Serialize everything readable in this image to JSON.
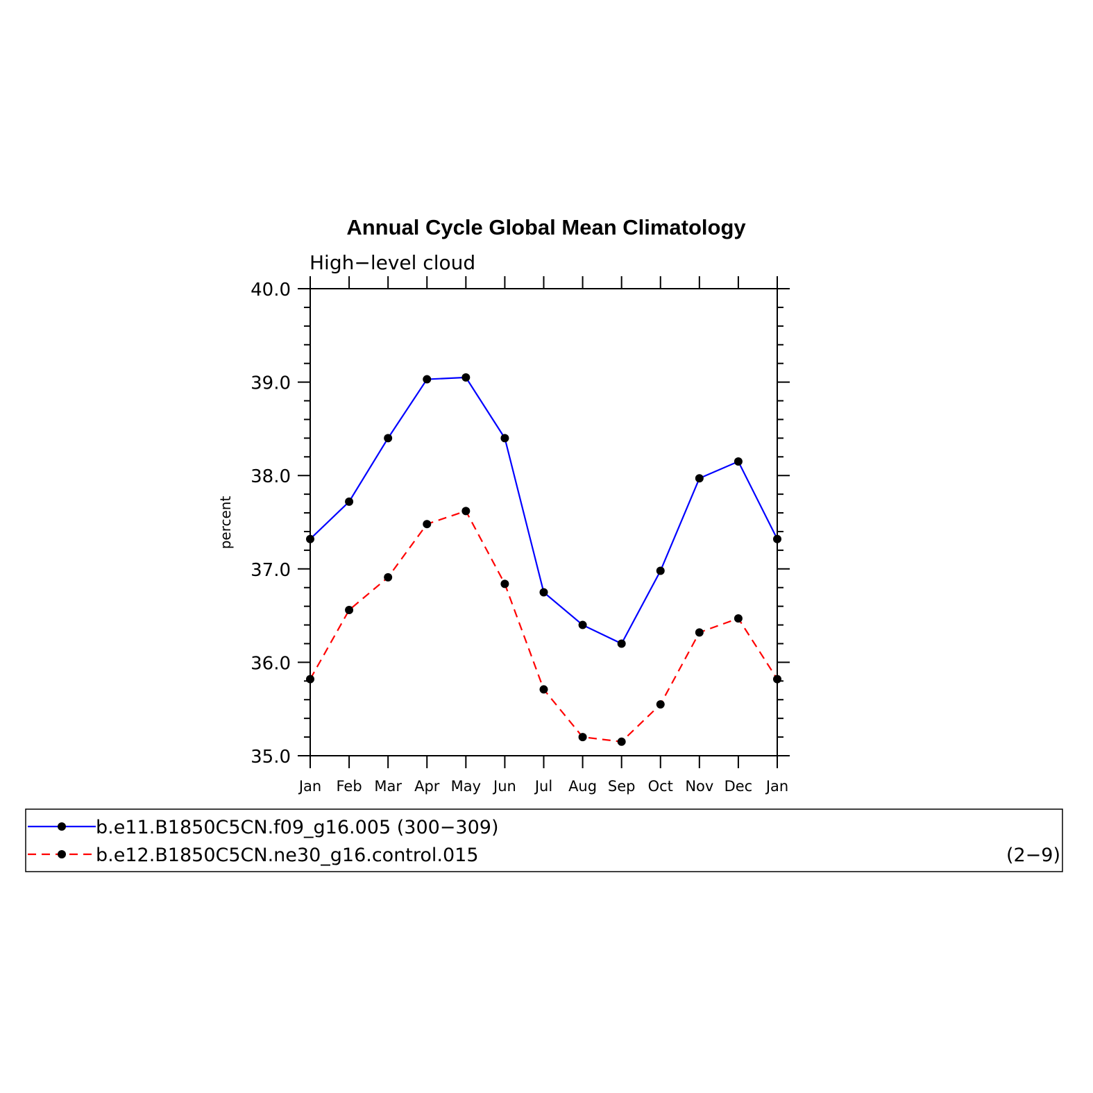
{
  "chart_data": {
    "type": "line",
    "title": "Annual Cycle Global Mean Climatology",
    "subtitle": "High−level cloud",
    "ylabel": "percent",
    "xlabel": "",
    "categories": [
      "Jan",
      "Feb",
      "Mar",
      "Apr",
      "May",
      "Jun",
      "Jul",
      "Aug",
      "Sep",
      "Oct",
      "Nov",
      "Dec",
      "Jan"
    ],
    "ylim": [
      35.0,
      40.0
    ],
    "yticks": [
      "35.0",
      "36.0",
      "37.0",
      "38.0",
      "39.0",
      "40.0"
    ],
    "grid": false,
    "legend_position": "bottom",
    "series": [
      {
        "name": "b.e11.B1850C5CN.f09_g16.005 (300−309)",
        "color": "#0000ff",
        "line_style": "solid",
        "marker": "filled-circle",
        "values": [
          37.32,
          37.72,
          38.4,
          39.03,
          39.05,
          38.4,
          36.75,
          36.4,
          36.2,
          36.98,
          37.97,
          38.15,
          37.32
        ]
      },
      {
        "name": "b.e12.B1850C5CN.ne30_g16.control.015",
        "name_suffix": "(2−9)",
        "color": "#ff0000",
        "line_style": "dashed",
        "marker": "filled-circle",
        "values": [
          35.82,
          36.56,
          36.91,
          37.48,
          37.62,
          36.84,
          35.71,
          35.2,
          35.15,
          35.55,
          36.32,
          36.47,
          35.82
        ]
      }
    ]
  }
}
